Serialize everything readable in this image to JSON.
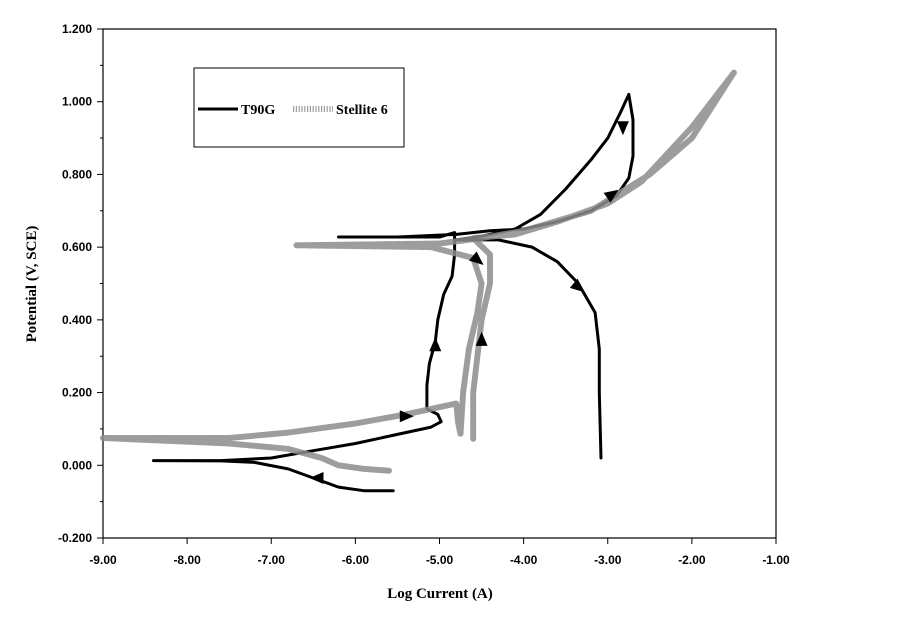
{
  "chart_data": {
    "type": "line",
    "xlabel": "Log Current (A)",
    "ylabel": "Potential (V, SCE)",
    "xlim": [
      -9.0,
      -1.0
    ],
    "ylim": [
      -0.2,
      1.2
    ],
    "x_ticks": [
      "-9.00",
      "-8.00",
      "-7.00",
      "-6.00",
      "-5.00",
      "-4.00",
      "-3.00",
      "-2.00",
      "-1.00"
    ],
    "y_ticks": [
      "-0.200",
      "0.000",
      "0.200",
      "0.400",
      "0.600",
      "0.800",
      "1.000",
      "1.200"
    ],
    "grid": false,
    "legend": "top-left",
    "series": [
      {
        "name": "T90G",
        "color": "#000000",
        "style": "solid",
        "points": [
          [
            -5.55,
            -0.07
          ],
          [
            -5.9,
            -0.07
          ],
          [
            -6.2,
            -0.06
          ],
          [
            -6.5,
            -0.035
          ],
          [
            -6.8,
            -0.01
          ],
          [
            -7.2,
            0.008
          ],
          [
            -7.6,
            0.012
          ],
          [
            -8.4,
            0.013
          ],
          [
            -7.6,
            0.013
          ],
          [
            -7.0,
            0.02
          ],
          [
            -6.5,
            0.04
          ],
          [
            -6.0,
            0.06
          ],
          [
            -5.5,
            0.085
          ],
          [
            -5.1,
            0.105
          ],
          [
            -4.98,
            0.12
          ],
          [
            -5.02,
            0.14
          ],
          [
            -5.15,
            0.155
          ],
          [
            -5.15,
            0.22
          ],
          [
            -5.12,
            0.28
          ],
          [
            -5.05,
            0.34
          ],
          [
            -5.02,
            0.4
          ],
          [
            -4.95,
            0.47
          ],
          [
            -4.85,
            0.52
          ],
          [
            -4.82,
            0.58
          ],
          [
            -4.82,
            0.64
          ],
          [
            -5.0,
            0.628
          ],
          [
            -5.5,
            0.628
          ],
          [
            -6.2,
            0.628
          ],
          [
            -5.5,
            0.628
          ],
          [
            -4.8,
            0.635
          ],
          [
            -4.4,
            0.645
          ],
          [
            -4.0,
            0.65
          ],
          [
            -3.6,
            0.67
          ],
          [
            -3.2,
            0.7
          ],
          [
            -2.9,
            0.74
          ],
          [
            -2.75,
            0.79
          ],
          [
            -2.7,
            0.85
          ],
          [
            -2.7,
            0.95
          ],
          [
            -2.75,
            1.02
          ],
          [
            -2.85,
            0.97
          ],
          [
            -3.0,
            0.9
          ],
          [
            -3.2,
            0.84
          ],
          [
            -3.5,
            0.76
          ],
          [
            -3.8,
            0.69
          ],
          [
            -4.1,
            0.65
          ],
          [
            -4.5,
            0.63
          ],
          [
            -4.8,
            0.62
          ],
          [
            -4.3,
            0.62
          ],
          [
            -3.9,
            0.6
          ],
          [
            -3.6,
            0.56
          ],
          [
            -3.35,
            0.5
          ],
          [
            -3.15,
            0.42
          ],
          [
            -3.1,
            0.32
          ],
          [
            -3.1,
            0.2
          ],
          [
            -3.08,
            0.02
          ]
        ]
      },
      {
        "name": "Stellite 6",
        "color": "#8c8c8c",
        "style": "dotted",
        "points": [
          [
            -5.6,
            -0.015
          ],
          [
            -5.9,
            -0.01
          ],
          [
            -6.2,
            0.0
          ],
          [
            -6.4,
            0.02
          ],
          [
            -6.8,
            0.045
          ],
          [
            -7.5,
            0.06
          ],
          [
            -9.0,
            0.075
          ],
          [
            -7.5,
            0.075
          ],
          [
            -6.8,
            0.09
          ],
          [
            -6.0,
            0.115
          ],
          [
            -5.4,
            0.14
          ],
          [
            -5.0,
            0.16
          ],
          [
            -4.8,
            0.17
          ],
          [
            -4.78,
            0.12
          ],
          [
            -4.75,
            0.085
          ],
          [
            -4.72,
            0.2
          ],
          [
            -4.65,
            0.32
          ],
          [
            -4.55,
            0.42
          ],
          [
            -4.5,
            0.5
          ],
          [
            -4.6,
            0.57
          ],
          [
            -5.1,
            0.6
          ],
          [
            -6.7,
            0.605
          ],
          [
            -5.0,
            0.61
          ],
          [
            -4.5,
            0.625
          ],
          [
            -4.0,
            0.645
          ],
          [
            -3.2,
            0.7
          ],
          [
            -2.5,
            0.8
          ],
          [
            -2.0,
            0.9
          ],
          [
            -1.5,
            1.08
          ],
          [
            -2.0,
            0.93
          ],
          [
            -2.6,
            0.78
          ],
          [
            -3.0,
            0.72
          ],
          [
            -3.6,
            0.67
          ],
          [
            -4.1,
            0.635
          ],
          [
            -4.6,
            0.625
          ],
          [
            -4.4,
            0.58
          ],
          [
            -4.4,
            0.5
          ],
          [
            -4.5,
            0.4
          ],
          [
            -4.55,
            0.3
          ],
          [
            -4.6,
            0.2
          ],
          [
            -4.6,
            0.1
          ],
          [
            -4.6,
            0.07
          ]
        ]
      }
    ],
    "arrows": [
      {
        "series": "T90G",
        "x": -6.45,
        "y": -0.035,
        "dir": "left"
      },
      {
        "series": "T90G",
        "x": -5.05,
        "y": 0.33,
        "dir": "up"
      },
      {
        "series": "T90G",
        "x": -2.82,
        "y": 0.93,
        "dir": "down"
      },
      {
        "series": "T90G",
        "x": -2.95,
        "y": 0.745,
        "dir": "up-right"
      },
      {
        "series": "T90G",
        "x": -3.35,
        "y": 0.49,
        "dir": "down-right"
      },
      {
        "series": "Stellite 6",
        "x": -5.4,
        "y": 0.135,
        "dir": "right"
      },
      {
        "series": "Stellite 6",
        "x": -4.5,
        "y": 0.345,
        "dir": "up"
      },
      {
        "series": "Stellite 6",
        "x": -4.55,
        "y": 0.565,
        "dir": "down-right"
      }
    ]
  }
}
